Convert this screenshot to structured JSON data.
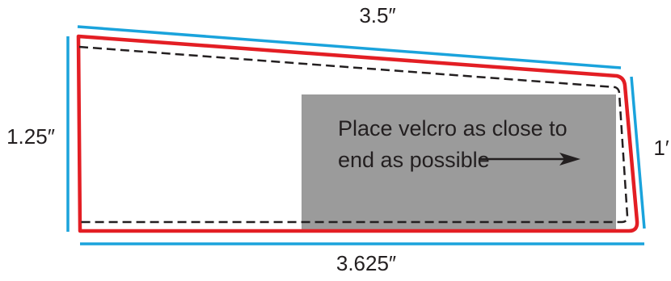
{
  "dimensions": {
    "top": "3.5″",
    "left": "1.25″",
    "right": "1′",
    "bottom": "3.625″"
  },
  "note": {
    "line1": "Place velcro as close to",
    "line2": "end as possible"
  },
  "colors": {
    "dimension_line": "#1aa3dc",
    "cut_outline": "#e31e24",
    "stitch_line": "#231f20",
    "note_box": "#9b9b9b",
    "text": "#231f20"
  }
}
